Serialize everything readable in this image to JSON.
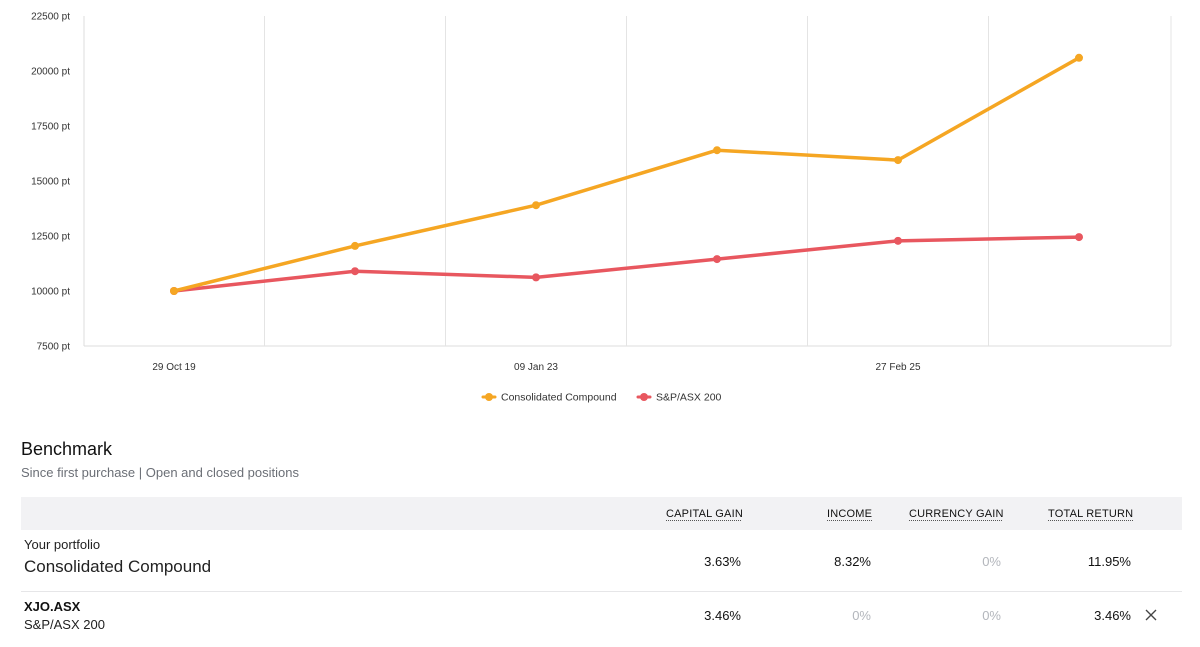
{
  "chart_data": {
    "type": "line",
    "x": [
      "29 Oct 19",
      "",
      "09 Jan 23",
      "",
      "27 Feb 25",
      ""
    ],
    "x_tick_labels": [
      "29 Oct 19",
      "09 Jan 23",
      "27 Feb 25"
    ],
    "y_tick_labels": [
      "7500 pt",
      "10000 pt",
      "12500 pt",
      "15000 pt",
      "17500 pt",
      "20000 pt",
      "22500 pt"
    ],
    "ylim": [
      7500,
      22500
    ],
    "y_ticks": [
      7500,
      10000,
      12500,
      15000,
      17500,
      20000,
      22500
    ],
    "grid": "vertical",
    "legend_position": "bottom-center",
    "series": [
      {
        "name": "Consolidated Compound",
        "color": "#F5A623",
        "values": [
          10000,
          12050,
          13900,
          16400,
          15950,
          20600
        ]
      },
      {
        "name": "S&P/ASX 200",
        "color": "#E8575F",
        "values": [
          10000,
          10900,
          10620,
          11450,
          12280,
          12450
        ]
      }
    ]
  },
  "benchmark": {
    "title": "Benchmark",
    "subtitle": "Since first purchase | Open and closed positions",
    "columns": {
      "capital_gain": "CAPITAL GAIN",
      "income": "INCOME",
      "currency_gain": "CURRENCY GAIN",
      "total_return": "TOTAL RETURN"
    },
    "rows": [
      {
        "label_small": "Your portfolio",
        "label_large": "Consolidated Compound",
        "capital_gain": "3.63%",
        "income": "8.32%",
        "currency_gain": "0%",
        "total_return": "11.95%"
      },
      {
        "code": "XJO.ASX",
        "name": "S&P/ASX 200",
        "capital_gain": "3.46%",
        "income": "0%",
        "currency_gain": "0%",
        "total_return": "3.46%",
        "remove_icon": "close-icon"
      }
    ]
  }
}
